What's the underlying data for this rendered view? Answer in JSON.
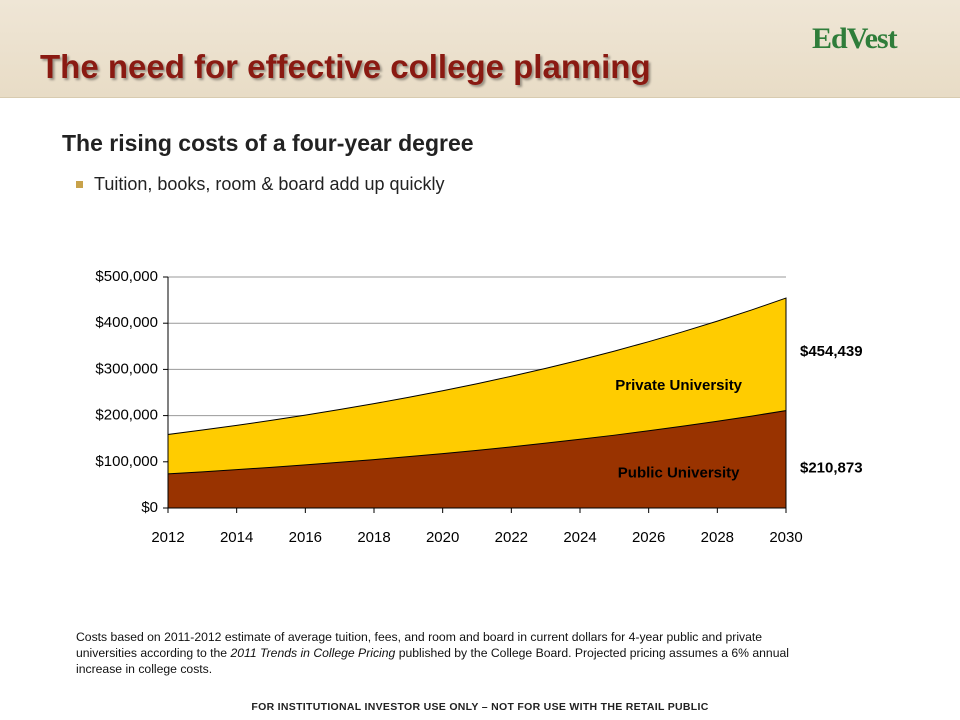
{
  "header": {
    "title": "The need for effective college planning",
    "logo": "EdVest"
  },
  "subtitle": "The rising costs of a four-year degree",
  "bullet": "Tuition, books, room & board add up quickly",
  "chart_data": {
    "type": "area",
    "x": [
      2012,
      2013,
      2014,
      2015,
      2016,
      2017,
      2018,
      2019,
      2020,
      2021,
      2022,
      2023,
      2024,
      2025,
      2026,
      2027,
      2028,
      2029,
      2030
    ],
    "series": [
      {
        "name": "Private University",
        "color": "#ffcc00",
        "values": [
          159200,
          168800,
          178900,
          189600,
          201000,
          213100,
          225900,
          239400,
          253800,
          269000,
          285100,
          302300,
          320400,
          339600,
          360000,
          381600,
          404500,
          428700,
          454439
        ],
        "value_labels": [
          null,
          null,
          null,
          null,
          null,
          null,
          null,
          null,
          null,
          null,
          null,
          null,
          null,
          null,
          null,
          null,
          null,
          null,
          "$454,439"
        ]
      },
      {
        "name": "Public University",
        "color": "#993300",
        "values": [
          73900,
          78300,
          83000,
          88000,
          93300,
          98900,
          104800,
          111100,
          117800,
          124800,
          132300,
          140300,
          148700,
          157600,
          167100,
          177100,
          187700,
          198900,
          210873
        ],
        "value_labels": [
          null,
          null,
          null,
          null,
          null,
          null,
          null,
          null,
          null,
          null,
          null,
          null,
          null,
          null,
          null,
          null,
          null,
          null,
          "$210,873"
        ]
      }
    ],
    "xlim": [
      2012,
      2030
    ],
    "xticks": [
      2012,
      2014,
      2016,
      2018,
      2020,
      2022,
      2024,
      2026,
      2028,
      2030
    ],
    "ylim": [
      0,
      500000
    ],
    "yticks": [
      {
        "value": 0,
        "label": "$0"
      },
      {
        "value": 100000,
        "label": "$100,000"
      },
      {
        "value": 200000,
        "label": "$200,000"
      },
      {
        "value": 300000,
        "label": "$300,000"
      },
      {
        "value": 400000,
        "label": "$400,000"
      },
      {
        "value": 500000,
        "label": "$500,000"
      }
    ],
    "grid": true
  },
  "footnote": [
    "Costs based on 2011-2012 estimate of average tuition, fees, and room and board in current dollars for 4-year public and private universities according to the ",
    "2011 Trends in College Pricing",
    " published by the College Board. Projected pricing assumes a 6% annual increase in college costs."
  ],
  "footer": "FOR INSTITUTIONAL INVESTOR USE ONLY – NOT FOR USE WITH THE RETAIL PUBLIC"
}
